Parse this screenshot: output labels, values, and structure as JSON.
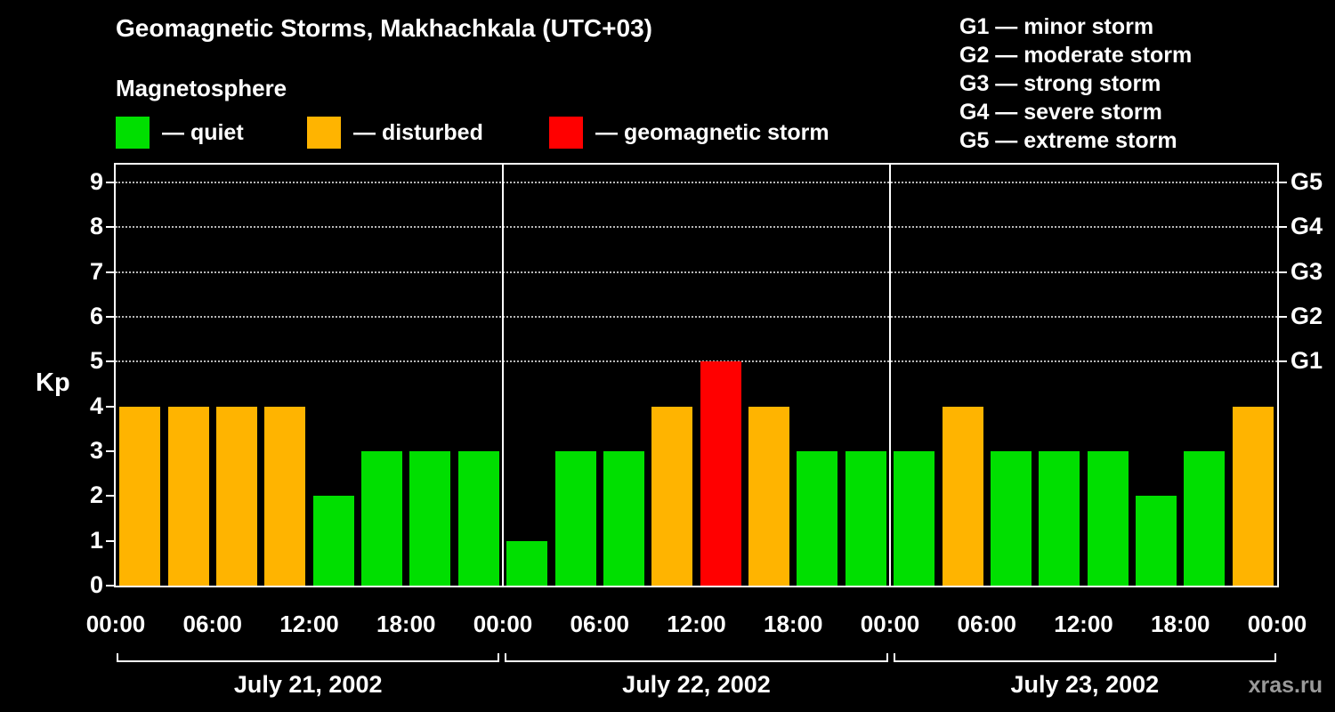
{
  "title": "Geomagnetic Storms, Makhachkala (UTC+03)",
  "subtitle": "Magnetosphere",
  "legend": {
    "quiet": "— quiet",
    "disturbed": "— disturbed",
    "storm": "— geomagnetic storm"
  },
  "storm_scale": [
    "G1 — minor storm",
    "G2 — moderate storm",
    "G3 — strong storm",
    "G4 — severe storm",
    "G5 — extreme storm"
  ],
  "watermark": "xras.ru",
  "chart_data": {
    "type": "bar",
    "title": "Geomagnetic Storms, Makhachkala (UTC+03)",
    "ylabel": "Kp",
    "ylim": [
      0,
      9.4
    ],
    "yticks": [
      0,
      1,
      2,
      3,
      4,
      5,
      6,
      7,
      8,
      9
    ],
    "grid_levels": [
      5,
      6,
      7,
      8,
      9
    ],
    "grid": "dotted horizontal lines at storm levels only",
    "legend_position": "top-left",
    "right_axis": [
      {
        "label": "G5",
        "kp": 9
      },
      {
        "label": "G4",
        "kp": 8
      },
      {
        "label": "G3",
        "kp": 7
      },
      {
        "label": "G2",
        "kp": 6
      },
      {
        "label": "G1",
        "kp": 5
      }
    ],
    "x_tick_labels": [
      "00:00",
      "06:00",
      "12:00",
      "18:00",
      "00:00",
      "06:00",
      "12:00",
      "18:00",
      "00:00",
      "06:00",
      "12:00",
      "18:00",
      "00:00"
    ],
    "bar_interval_hours": 3,
    "days": [
      {
        "label": "July 21, 2002",
        "values": [
          4,
          4,
          4,
          4,
          2,
          3,
          3,
          3
        ]
      },
      {
        "label": "July 22, 2002",
        "values": [
          1,
          3,
          3,
          4,
          5,
          4,
          3,
          3
        ]
      },
      {
        "label": "July 23, 2002",
        "values": [
          3,
          4,
          3,
          3,
          3,
          2,
          3,
          4
        ]
      }
    ],
    "colors": {
      "quiet": "#00df00",
      "disturbed": "#ffb400",
      "storm": "#ff0000",
      "axis": "#ffffff",
      "background": "#000000"
    },
    "color_rule": "kp<=3 quiet (green), kp==4 disturbed (orange), kp>=5 geomagnetic storm (red)"
  }
}
